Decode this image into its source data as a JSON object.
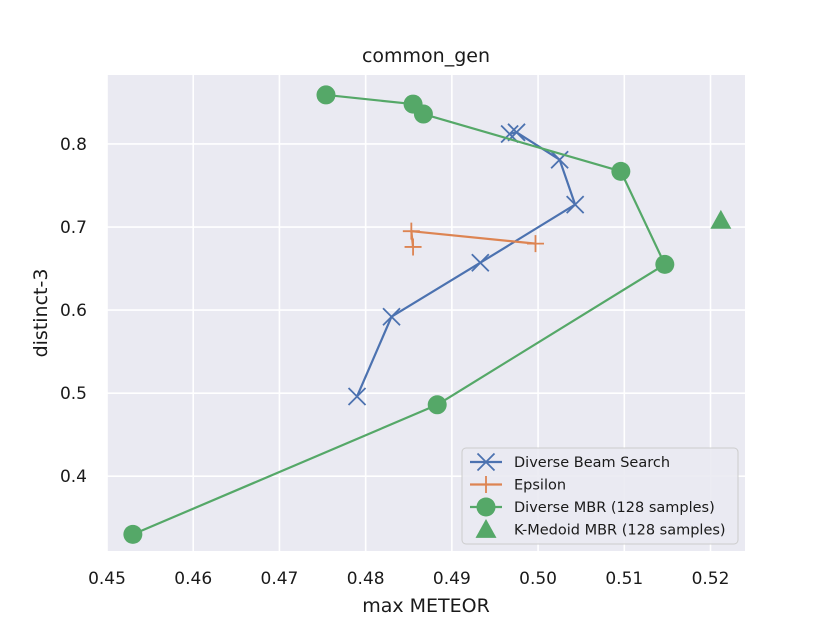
{
  "chart_data": {
    "type": "line",
    "title": "common_gen",
    "xlabel": "max METEOR",
    "ylabel": "distinct-3",
    "xlim": [
      0.45,
      0.524
    ],
    "ylim": [
      0.31,
      0.883
    ],
    "xticks": [
      0.45,
      0.46,
      0.47,
      0.48,
      0.49,
      0.5,
      0.51,
      0.52
    ],
    "xtick_labels": [
      "0.45",
      "0.46",
      "0.47",
      "0.48",
      "0.49",
      "0.50",
      "0.51",
      "0.52"
    ],
    "yticks": [
      0.4,
      0.5,
      0.6,
      0.7,
      0.8
    ],
    "ytick_labels": [
      "0.4",
      "0.5",
      "0.6",
      "0.7",
      "0.8"
    ],
    "grid": true,
    "legend_position": "bottom-right",
    "series": [
      {
        "name": "Diverse Beam Search",
        "color": "#4c72b0",
        "marker": "x",
        "points": [
          [
            0.479,
            0.496
          ],
          [
            0.483,
            0.592
          ],
          [
            0.4933,
            0.657
          ],
          [
            0.5043,
            0.727
          ],
          [
            0.5025,
            0.781
          ],
          [
            0.4975,
            0.814
          ],
          [
            0.4967,
            0.812
          ]
        ]
      },
      {
        "name": "Epsilon",
        "color": "#dd8452",
        "marker": "+",
        "points": [
          [
            0.4855,
            0.676
          ],
          [
            0.4853,
            0.695
          ],
          [
            0.4997,
            0.68
          ]
        ]
      },
      {
        "name": "Diverse MBR (128 samples)",
        "color": "#55a868",
        "marker": "circle",
        "points": [
          [
            0.453,
            0.33
          ],
          [
            0.4883,
            0.486
          ],
          [
            0.5147,
            0.655
          ],
          [
            0.5096,
            0.767
          ],
          [
            0.4867,
            0.836
          ],
          [
            0.4855,
            0.848
          ],
          [
            0.4754,
            0.859
          ]
        ]
      },
      {
        "name": "K-Medoid MBR (128 samples)",
        "color": "#55a868",
        "marker": "triangle",
        "points": [
          [
            0.5212,
            0.708
          ]
        ]
      }
    ]
  }
}
